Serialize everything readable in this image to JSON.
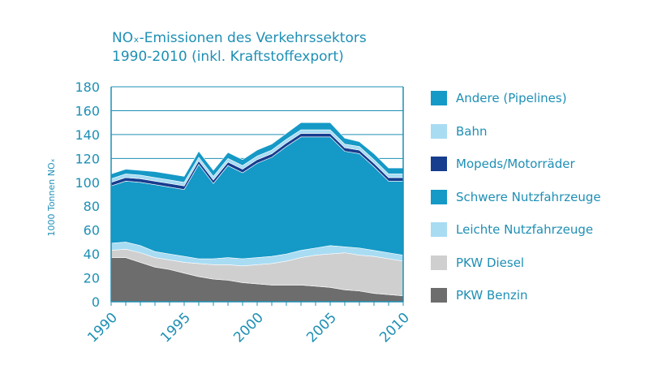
{
  "chart_data": {
    "type": "area",
    "stacked": true,
    "title_line1": "NOₓ-Emissionen des Verkehrssektors",
    "title_line2": "1990-2010 (inkl. Kraftstoffexport)",
    "ylabel": "1000 Tonnen NOₓ",
    "xlabel": "",
    "ylim": [
      0,
      180
    ],
    "y_ticks": [
      "0",
      "20",
      "40",
      "60",
      "80",
      "100",
      "120",
      "140",
      "160",
      "180"
    ],
    "x_ticks": [
      "1990",
      "1995",
      "2000",
      "2005",
      "2010"
    ],
    "grid": "horizontal",
    "legend_position": "right",
    "x": [
      1990,
      1991,
      1992,
      1993,
      1994,
      1995,
      1996,
      1997,
      1998,
      1999,
      2000,
      2001,
      2002,
      2003,
      2004,
      2005,
      2006,
      2007,
      2008,
      2009,
      2010
    ],
    "series": [
      {
        "name": "PKW Benzin",
        "color": "#6d6d6d",
        "values": [
          37,
          37,
          33,
          29,
          27,
          24,
          21,
          19,
          18,
          16,
          15,
          14,
          14,
          14,
          13,
          12,
          10,
          9,
          7,
          6,
          5
        ]
      },
      {
        "name": "PKW Diesel",
        "color": "#cfcfcf",
        "values": [
          6,
          7,
          8,
          8,
          8,
          9,
          11,
          12,
          13,
          14,
          16,
          18,
          20,
          23,
          26,
          28,
          31,
          30,
          31,
          30,
          29
        ]
      },
      {
        "name": "Leichte Nutzfahrzeuge",
        "color": "#a8dcf3",
        "values": [
          6,
          6,
          6,
          5,
          5,
          5,
          4,
          5,
          6,
          6,
          6,
          6,
          6,
          6,
          6,
          7,
          5,
          6,
          5,
          5,
          5
        ]
      },
      {
        "name": "Schwere Nutzfahrzeuge",
        "color": "#1599c6",
        "values": [
          48,
          51,
          53,
          56,
          56,
          56,
          79,
          63,
          77,
          72,
          79,
          83,
          90,
          95,
          93,
          91,
          80,
          79,
          70,
          60,
          62
        ]
      },
      {
        "name": "Mopeds/Motorräder",
        "color": "#173d8f",
        "values": [
          3,
          3,
          3,
          3,
          3,
          3,
          3,
          3,
          3,
          3,
          3,
          3,
          3,
          3,
          3,
          3,
          3,
          3,
          3,
          3,
          3
        ]
      },
      {
        "name": "Bahn",
        "color": "#a8dcf3",
        "values": [
          3,
          3,
          3,
          3,
          3,
          3,
          3,
          3,
          3,
          3,
          3,
          3,
          3,
          3,
          3,
          3,
          3,
          3,
          3,
          3,
          3
        ]
      },
      {
        "name": "Andere (Pipelines)",
        "color": "#1599c6",
        "values": [
          4,
          4,
          4,
          5,
          5,
          5,
          5,
          5,
          5,
          5,
          5,
          5,
          5,
          6,
          6,
          6,
          5,
          4,
          5,
          5,
          5
        ]
      }
    ],
    "legend_order": [
      "Andere (Pipelines)",
      "Bahn",
      "Mopeds/Motorräder",
      "Schwere Nutzfahrzeuge",
      "Leichte Nutzfahrzeuge",
      "PKW Diesel",
      "PKW Benzin"
    ]
  },
  "colors": {
    "text": "#1e8fb5",
    "axis": "#1e8fb5",
    "grid": "#1e8fb5"
  }
}
